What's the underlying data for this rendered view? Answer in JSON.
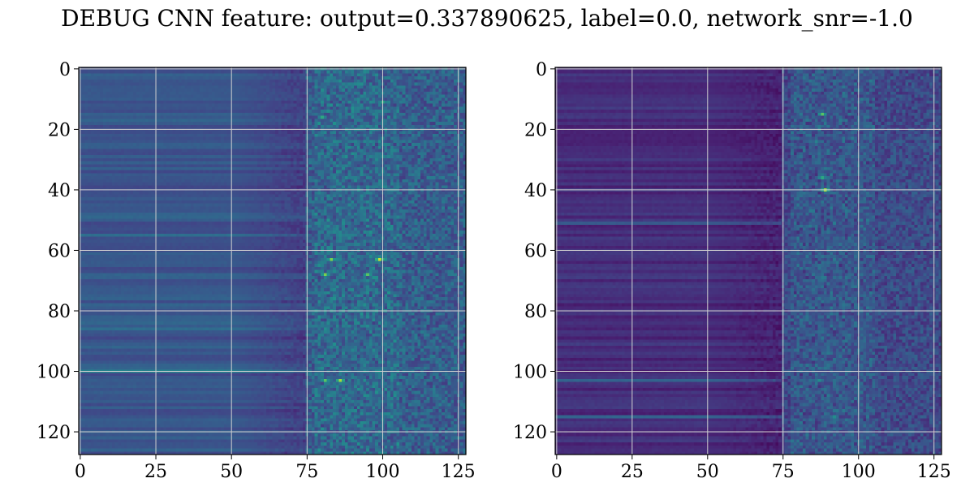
{
  "figure": {
    "title": "DEBUG CNN feature: output=0.337890625, label=0.0, network_snr=-1.0"
  },
  "chart_data": [
    {
      "type": "heatmap",
      "title": "",
      "xlabel": "",
      "ylabel": "",
      "colormap": "viridis",
      "shape": [
        128,
        128
      ],
      "xlim": [
        0,
        127
      ],
      "ylim": [
        127,
        0
      ],
      "grid": true,
      "xticks": [
        0,
        25,
        50,
        75,
        100,
        125
      ],
      "yticks": [
        0,
        20,
        40,
        60,
        80,
        100,
        120
      ],
      "xtick_labels": [
        "0",
        "25",
        "50",
        "75",
        "100",
        "125"
      ],
      "ytick_labels": [
        "0",
        "20",
        "40",
        "60",
        "80",
        "100",
        "120"
      ],
      "description": "Columns 0-50 smooth horizontal bands of mid blue-teal; noisy region from about column 75 to 127 with brightest yellow-green cells near columns 78-105",
      "hot_spots": [
        {
          "x": 100,
          "y": 11,
          "value": 0.7
        },
        {
          "x": 80,
          "y": 16,
          "value": 0.7
        },
        {
          "x": 99,
          "y": 63,
          "value": 0.95
        },
        {
          "x": 83,
          "y": 63,
          "value": 0.85
        },
        {
          "x": 81,
          "y": 68,
          "value": 0.85
        },
        {
          "x": 95,
          "y": 68,
          "value": 0.8
        },
        {
          "x": 86,
          "y": 103,
          "value": 0.9
        },
        {
          "x": 81,
          "y": 103,
          "value": 0.8
        }
      ],
      "notable_rows": [
        {
          "y": 55,
          "value": 0.45
        },
        {
          "y": 68,
          "value": 0.4
        },
        {
          "y": 86,
          "value": 0.45
        },
        {
          "y": 100,
          "value": 0.55
        }
      ]
    },
    {
      "type": "heatmap",
      "title": "",
      "xlabel": "",
      "ylabel": "",
      "colormap": "viridis",
      "shape": [
        128,
        128
      ],
      "xlim": [
        0,
        127
      ],
      "ylim": [
        127,
        0
      ],
      "grid": true,
      "xticks": [
        0,
        25,
        50,
        75,
        100,
        125
      ],
      "yticks": [
        0,
        20,
        40,
        60,
        80,
        100,
        120
      ],
      "xtick_labels": [
        "0",
        "25",
        "50",
        "75",
        "100",
        "125"
      ],
      "ytick_labels": [
        "0",
        "20",
        "40",
        "60",
        "80",
        "100",
        "120"
      ],
      "description": "Mostly dark purple-blue bands; noisy region from about column 75 to 127 with brightest cells near column 87-90",
      "hot_spots": [
        {
          "x": 88,
          "y": 15,
          "value": 0.8
        },
        {
          "x": 88,
          "y": 36,
          "value": 0.7
        },
        {
          "x": 89,
          "y": 40,
          "value": 0.9
        },
        {
          "x": 86,
          "y": 24,
          "value": 0.55
        },
        {
          "x": 87,
          "y": 103,
          "value": 0.6
        },
        {
          "x": 92,
          "y": 115,
          "value": 0.6
        }
      ],
      "notable_rows": [
        {
          "y": 103,
          "value": 0.4
        },
        {
          "y": 115,
          "value": 0.4
        },
        {
          "y": 51,
          "value": 0.35
        }
      ]
    }
  ]
}
